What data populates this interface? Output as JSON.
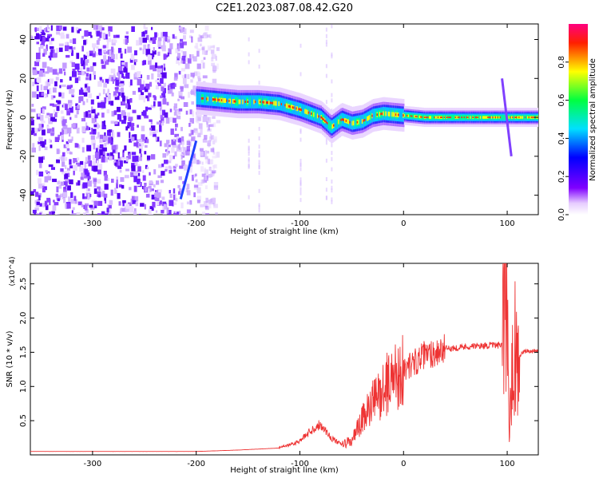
{
  "title": "C2E1.2023.087.08.42.G20",
  "chart_data": [
    {
      "type": "heatmap",
      "xlabel": "Height of straight line (km)",
      "ylabel": "Frequency (Hz)",
      "xlim": [
        -360,
        130
      ],
      "ylim": [
        -50,
        48
      ],
      "xticks": [
        -300,
        -200,
        -100,
        0,
        100
      ],
      "yticks": [
        -40,
        -20,
        0,
        20,
        40
      ],
      "colorbar": {
        "label": "Normalized spectral amplitude",
        "range": [
          0,
          1
        ],
        "ticks": [
          "0.0",
          "0.2",
          "0.4",
          "0.6",
          "0.8"
        ],
        "colormap": "rainbow (white-purple-blue-cyan-green-yellow-red)"
      },
      "ridge": {
        "x": [
          -200,
          -180,
          -160,
          -140,
          -120,
          -100,
          -80,
          -70,
          -60,
          -50,
          -40,
          -30,
          -20,
          0,
          20,
          40,
          60,
          80,
          100,
          130
        ],
        "frequency": [
          10,
          9,
          8,
          8,
          7,
          4,
          0,
          -5,
          -1,
          -3,
          -2,
          1,
          2,
          1,
          0,
          0,
          0,
          0,
          0,
          0
        ]
      },
      "noise_region_x": [
        -360,
        -190
      ]
    },
    {
      "type": "line",
      "xlabel": "Height of straight line (km)",
      "ylabel": "SNR (10 * v/v)",
      "y_multiplier": "(x10^4)",
      "xlim": [
        -360,
        130
      ],
      "ylim": [
        0,
        2.8
      ],
      "xticks": [
        -300,
        -200,
        -100,
        0,
        100
      ],
      "yticks": [
        0.5,
        1.0,
        1.5,
        2.0,
        2.5
      ],
      "color": "#ee3333",
      "series": [
        {
          "x": [
            -360,
            -300,
            -250,
            -200,
            -160,
            -120,
            -100,
            -90,
            -80,
            -70,
            -60,
            -50,
            -40,
            -30,
            -20,
            -15,
            -10,
            0,
            10,
            20,
            30,
            40,
            60,
            80,
            90,
            95,
            100,
            102,
            105,
            110,
            115,
            120,
            130
          ],
          "values": [
            0.05,
            0.05,
            0.05,
            0.05,
            0.07,
            0.1,
            0.2,
            0.35,
            0.45,
            0.25,
            0.15,
            0.2,
            0.5,
            0.75,
            0.95,
            1.05,
            1.15,
            1.25,
            1.35,
            1.45,
            1.5,
            1.55,
            1.58,
            1.6,
            1.6,
            1.6,
            2.6,
            0.3,
            1.8,
            1.4,
            1.5,
            1.52,
            1.52
          ]
        }
      ]
    }
  ]
}
